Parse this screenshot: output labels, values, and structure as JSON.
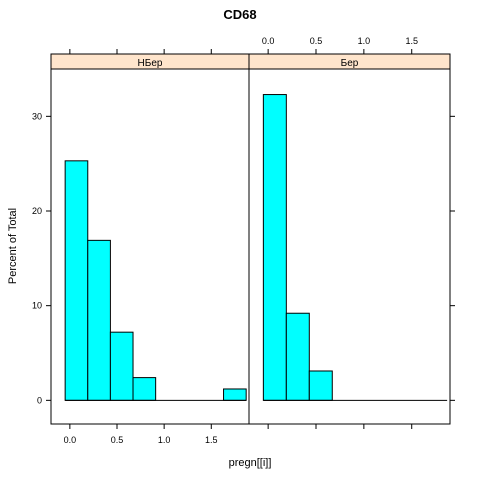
{
  "chart_data": {
    "type": "bar",
    "title": "CD68",
    "xlabel": "pregn[[i]]",
    "ylabel": "Percent of Total",
    "bar_color": "#00ffff",
    "strip_color": "#ffe5cc",
    "xlim": [
      -0.2,
      1.9
    ],
    "ylim": [
      -2.5,
      35
    ],
    "x_ticks": [
      0.0,
      0.5,
      1.0,
      1.5
    ],
    "x_tick_labels": [
      "0.0",
      "0.5",
      "1.0",
      "1.5"
    ],
    "y_ticks": [
      0,
      10,
      20,
      30
    ],
    "y_tick_labels": [
      "0",
      "10",
      "20",
      "30"
    ],
    "bin_edges": [
      -0.05,
      0.19,
      0.43,
      0.67,
      0.91,
      1.15,
      1.39,
      1.63,
      1.87
    ],
    "panels": [
      {
        "name": "НБер",
        "values": [
          25.3,
          16.9,
          7.2,
          2.4,
          0,
          0,
          0,
          1.2
        ]
      },
      {
        "name": "Бер",
        "values": [
          32.3,
          9.2,
          3.1,
          0,
          0,
          0,
          0,
          0
        ]
      }
    ]
  }
}
